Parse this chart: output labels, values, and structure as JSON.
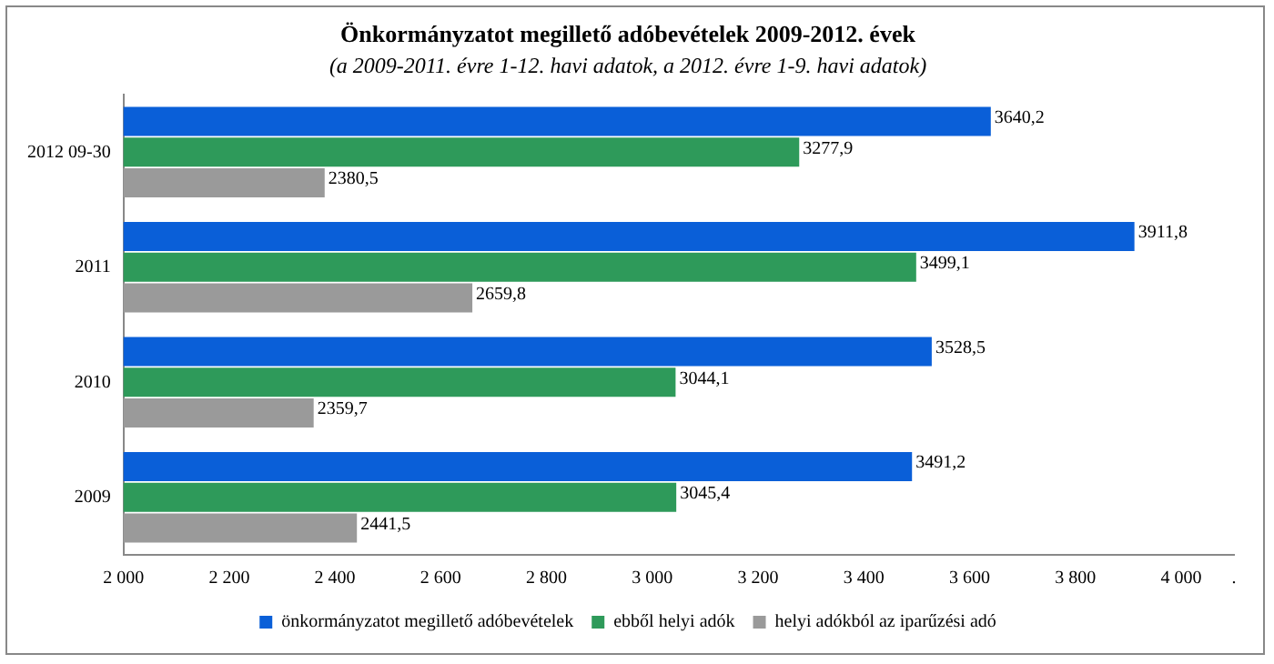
{
  "chart_data": {
    "type": "bar",
    "orientation": "horizontal",
    "title": "Önkormányzatot megillető adóbevételek 2009-2012. évek",
    "subtitle": "(a 2009-2011. évre 1-12. havi adatok, a 2012. évre 1-9. havi adatok)",
    "categories": [
      "2012 09-30",
      "2011",
      "2010",
      "2009"
    ],
    "series": [
      {
        "name": "önkormányzatot megillető adóbevételek",
        "color": "#0a5fd8",
        "values": [
          3640.2,
          3911.8,
          3528.5,
          3491.2
        ],
        "value_labels": [
          "3640,2",
          "3911,8",
          "3528,5",
          "3491,2"
        ]
      },
      {
        "name": "ebből helyi adók",
        "color": "#2e9a5a",
        "values": [
          3277.9,
          3499.1,
          3044.1,
          3045.4
        ],
        "value_labels": [
          "3277,9",
          "3499,1",
          "3044,1",
          "3045,4"
        ]
      },
      {
        "name": "helyi adókból az iparűzési adó",
        "color": "#9a9a9a",
        "values": [
          2380.5,
          2659.8,
          2359.7,
          2441.5
        ],
        "value_labels": [
          "2380,5",
          "2659,8",
          "2359,7",
          "2441,5"
        ]
      }
    ],
    "xlim": [
      2000,
      4100
    ],
    "xticks": [
      {
        "value": 2000,
        "label": "2 000"
      },
      {
        "value": 2200,
        "label": "2 200"
      },
      {
        "value": 2400,
        "label": "2 400"
      },
      {
        "value": 2600,
        "label": "2 600"
      },
      {
        "value": 2800,
        "label": "2 800"
      },
      {
        "value": 3000,
        "label": "3 000"
      },
      {
        "value": 3200,
        "label": "3 200"
      },
      {
        "value": 3400,
        "label": "3 400"
      },
      {
        "value": 3600,
        "label": "3 600"
      },
      {
        "value": 3800,
        "label": "3 800"
      },
      {
        "value": 4000,
        "label": "4 000"
      },
      {
        "value": 4100,
        "label": "."
      }
    ],
    "legend": "bottom",
    "grid": false
  }
}
